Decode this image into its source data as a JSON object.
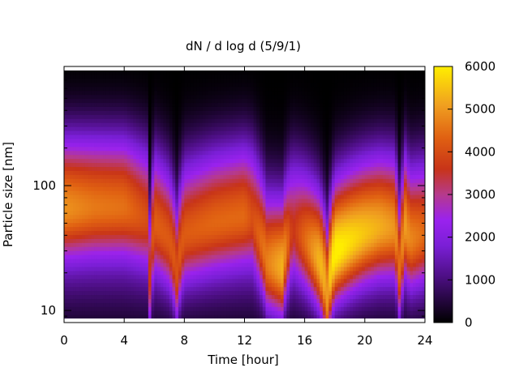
{
  "chart_data": {
    "type": "heatmap",
    "title": "dN / d log d (5/9/1)",
    "xlabel": "Time [hour]",
    "ylabel": "Particle size [nm]",
    "xlim": [
      0,
      24
    ],
    "ylim": [
      8,
      900
    ],
    "y_scale": "log",
    "x_ticks": [
      0,
      4,
      8,
      12,
      16,
      20,
      24
    ],
    "x_tick_labels": [
      "0",
      "4",
      "8",
      "12",
      "16",
      "20",
      "24"
    ],
    "y_ticks": [
      10,
      100
    ],
    "y_tick_labels": [
      "10",
      "100"
    ],
    "colorbar": {
      "range": [
        0,
        6000
      ],
      "ticks": [
        0,
        1000,
        2000,
        3000,
        4000,
        5000,
        6000
      ],
      "tick_labels": [
        "0",
        "1000",
        "2000",
        "3000",
        "4000",
        "5000",
        "6000"
      ],
      "palette": [
        "#000000",
        "#3a0a5e",
        "#7a1fd6",
        "#a020f0",
        "#b63a8c",
        "#c8341a",
        "#e05a10",
        "#f0a020",
        "#ffee00"
      ]
    },
    "grid": false,
    "mode_diameter_nm": {
      "hours": [
        0,
        2,
        4,
        5.5,
        5.7,
        6,
        7,
        7.5,
        8,
        10,
        12,
        12.5,
        13.5,
        14.5,
        15.2,
        16,
        17,
        17.5,
        18,
        19,
        20,
        21,
        22,
        22.3,
        22.7,
        23,
        24
      ],
      "values": [
        70,
        72,
        72,
        60,
        18,
        55,
        40,
        20,
        45,
        55,
        62,
        60,
        25,
        22,
        50,
        40,
        25,
        12,
        30,
        38,
        45,
        50,
        50,
        22,
        50,
        40,
        45
      ]
    },
    "peak_concentration": {
      "hours": [
        0,
        2,
        4,
        5.5,
        5.7,
        6,
        7,
        7.5,
        8,
        10,
        12,
        12.5,
        13.5,
        14.5,
        15.2,
        16,
        17,
        17.5,
        18,
        19,
        20,
        21,
        22,
        22.3,
        22.7,
        23,
        24
      ],
      "values": [
        4600,
        4300,
        4200,
        3600,
        2800,
        3800,
        3500,
        3200,
        3600,
        3900,
        4000,
        3600,
        3800,
        4400,
        3000,
        3700,
        4500,
        4300,
        5300,
        5100,
        4900,
        4700,
        4400,
        3600,
        4500,
        4100,
        3800
      ]
    }
  }
}
